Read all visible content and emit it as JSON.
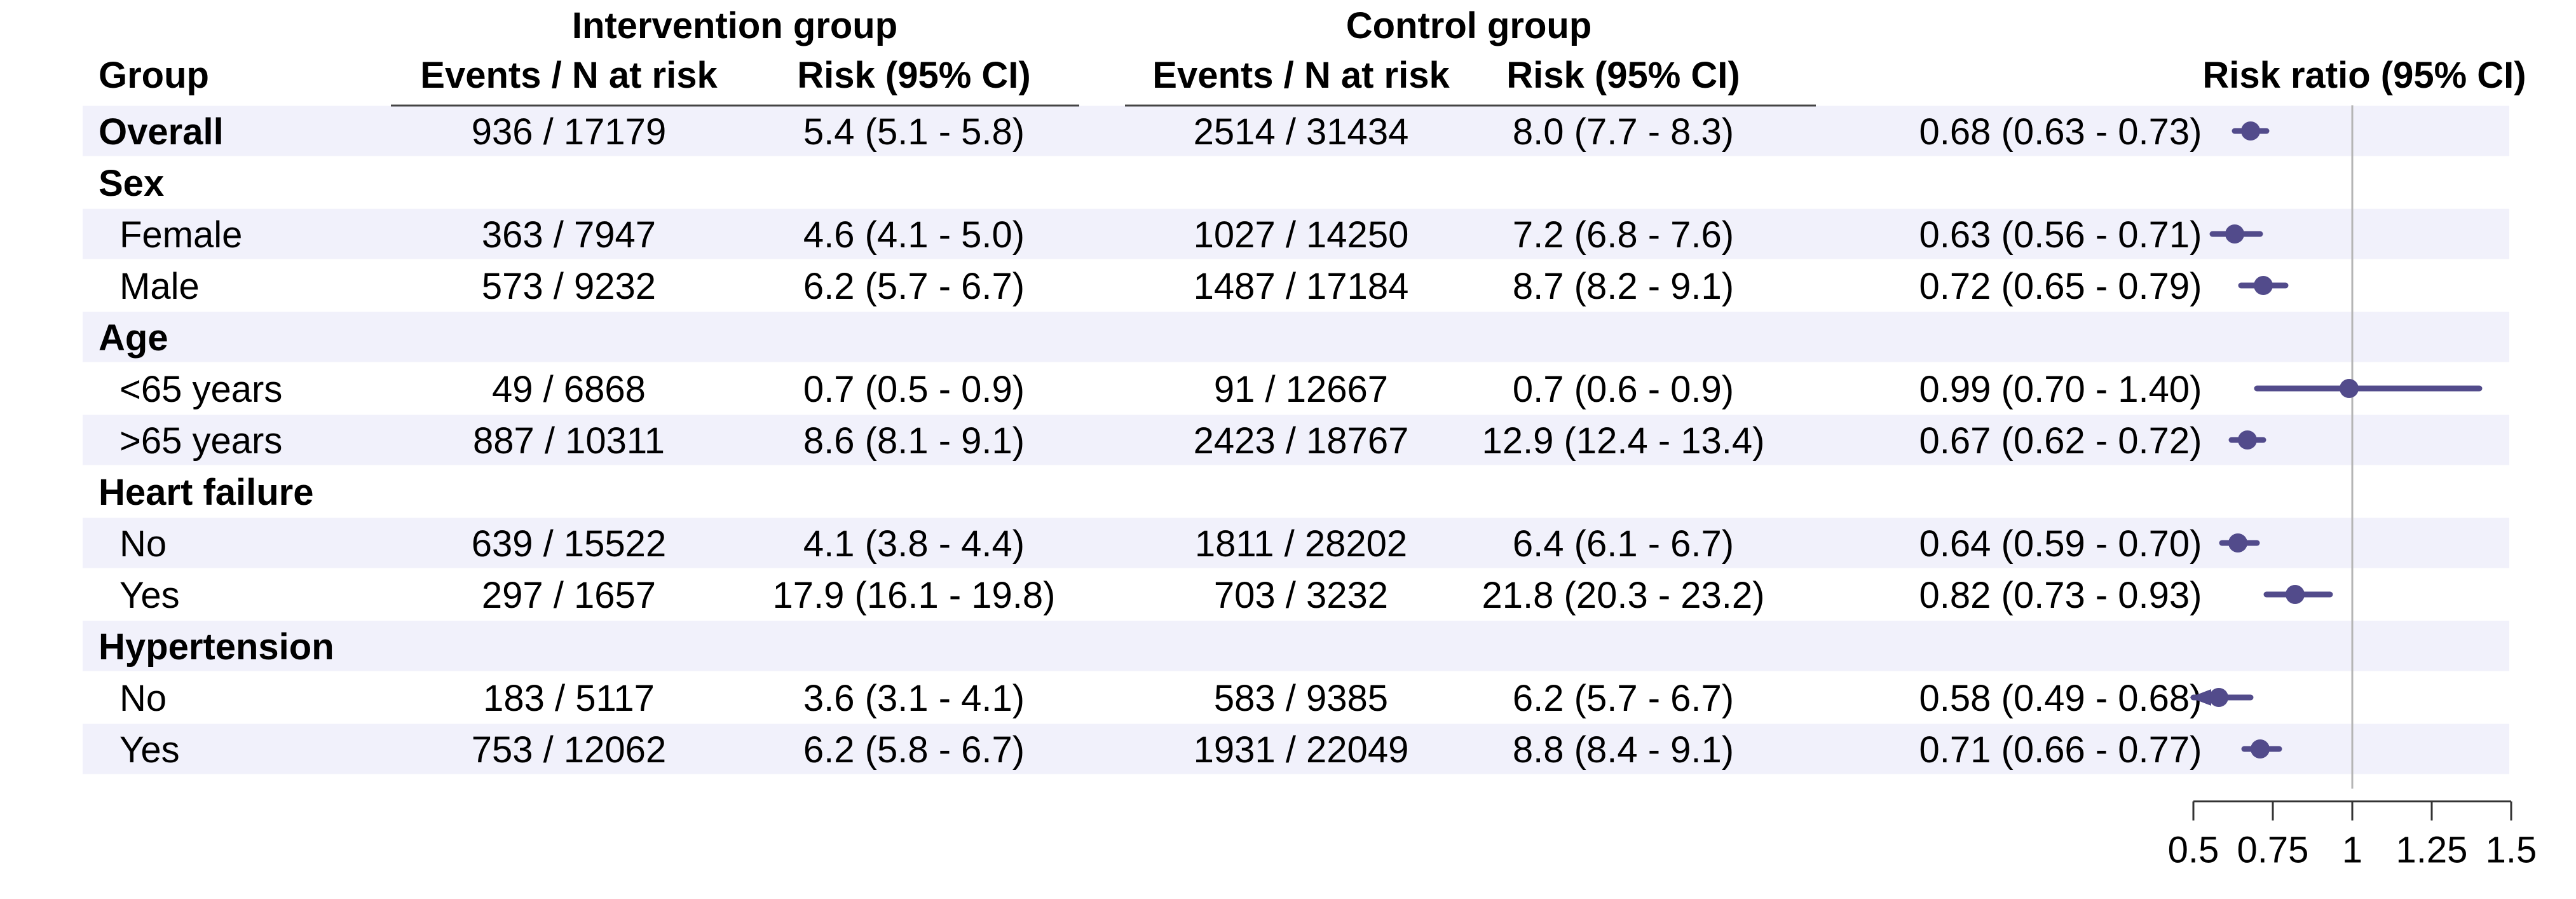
{
  "header": {
    "intervention_group": "Intervention group",
    "control_group": "Control group",
    "group": "Group",
    "events_n_at_risk": "Events / N at risk",
    "risk_95_ci": "Risk (95% CI)",
    "risk_ratio_95_ci": "Risk ratio (95% CI)"
  },
  "colors": {
    "band": "#f1f1fb",
    "point": "#524b8b",
    "reference_line": "#b5b5b5"
  },
  "chart_data": {
    "type": "forest",
    "xlim": [
      0.5,
      1.5
    ],
    "reference_line": 1,
    "x_ticks": [
      0.5,
      0.75,
      1,
      1.25,
      1.5
    ],
    "x_tick_labels": [
      "0.5",
      "0.75",
      "1",
      "1.25",
      "1.5"
    ],
    "rows": [
      {
        "label": "Overall",
        "kind": "total",
        "band": true,
        "int_events": "936 / 17179",
        "int_risk": "5.4 (5.1 - 5.8)",
        "ctl_events": "2514 / 31434",
        "ctl_risk": "8.0 (7.7 - 8.3)",
        "rr_text": "0.68 (0.63 - 0.73)",
        "rr": 0.68,
        "lo": 0.63,
        "hi": 0.73
      },
      {
        "label": "Sex",
        "kind": "header",
        "band": false
      },
      {
        "label": "Female",
        "kind": "sub",
        "band": true,
        "int_events": "363 / 7947",
        "int_risk": "4.6 (4.1 - 5.0)",
        "ctl_events": "1027 / 14250",
        "ctl_risk": "7.2 (6.8 - 7.6)",
        "rr_text": "0.63 (0.56 - 0.71)",
        "rr": 0.63,
        "lo": 0.56,
        "hi": 0.71
      },
      {
        "label": "Male",
        "kind": "sub",
        "band": false,
        "int_events": "573 / 9232",
        "int_risk": "6.2 (5.7 - 6.7)",
        "ctl_events": "1487 / 17184",
        "ctl_risk": "8.7 (8.2 - 9.1)",
        "rr_text": "0.72 (0.65 - 0.79)",
        "rr": 0.72,
        "lo": 0.65,
        "hi": 0.79
      },
      {
        "label": "Age",
        "kind": "header",
        "band": true
      },
      {
        "label": "<65 years",
        "kind": "sub",
        "band": false,
        "int_events": "49 / 6868",
        "int_risk": "0.7 (0.5 - 0.9)",
        "ctl_events": "91 / 12667",
        "ctl_risk": "0.7 (0.6 - 0.9)",
        "rr_text": "0.99 (0.70 - 1.40)",
        "rr": 0.99,
        "lo": 0.7,
        "hi": 1.4
      },
      {
        "label": ">65 years",
        "kind": "sub",
        "band": true,
        "int_events": "887 / 10311",
        "int_risk": "8.6 (8.1 - 9.1)",
        "ctl_events": "2423 / 18767",
        "ctl_risk": "12.9 (12.4 - 13.4)",
        "rr_text": "0.67 (0.62 - 0.72)",
        "rr": 0.67,
        "lo": 0.62,
        "hi": 0.72
      },
      {
        "label": "Heart failure",
        "kind": "header",
        "band": false
      },
      {
        "label": "No",
        "kind": "sub",
        "band": true,
        "int_events": "639 / 15522",
        "int_risk": "4.1 (3.8 - 4.4)",
        "ctl_events": "1811 / 28202",
        "ctl_risk": "6.4 (6.1 - 6.7)",
        "rr_text": "0.64 (0.59 - 0.70)",
        "rr": 0.64,
        "lo": 0.59,
        "hi": 0.7
      },
      {
        "label": "Yes",
        "kind": "sub",
        "band": false,
        "int_events": "297 / 1657",
        "int_risk": "17.9 (16.1 - 19.8)",
        "ctl_events": "703 / 3232",
        "ctl_risk": "21.8 (20.3 - 23.2)",
        "rr_text": "0.82 (0.73 - 0.93)",
        "rr": 0.82,
        "lo": 0.73,
        "hi": 0.93
      },
      {
        "label": "Hypertension",
        "kind": "header",
        "band": true
      },
      {
        "label": "No",
        "kind": "sub",
        "band": false,
        "int_events": "183 / 5117",
        "int_risk": "3.6 (3.1 - 4.1)",
        "ctl_events": "583 / 9385",
        "ctl_risk": "6.2 (5.7 - 6.7)",
        "rr_text": "0.58 (0.49 - 0.68)",
        "rr": 0.58,
        "lo": 0.49,
        "hi": 0.68,
        "clipped_low": true
      },
      {
        "label": "Yes",
        "kind": "sub",
        "band": true,
        "int_events": "753 / 12062",
        "int_risk": "6.2 (5.8 - 6.7)",
        "ctl_events": "1931 / 22049",
        "ctl_risk": "8.8 (8.4 - 9.1)",
        "rr_text": "0.71 (0.66 - 0.77)",
        "rr": 0.71,
        "lo": 0.66,
        "hi": 0.77
      }
    ]
  }
}
